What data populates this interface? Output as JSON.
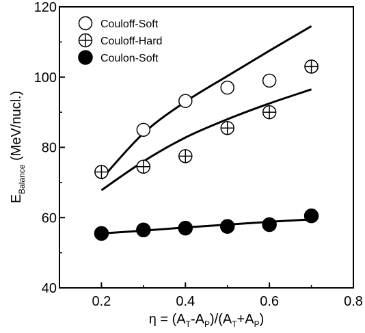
{
  "chart_data": {
    "type": "scatter",
    "xlim": [
      0.1,
      0.8
    ],
    "ylim": [
      40,
      120
    ],
    "xticks": [
      0.2,
      0.4,
      0.6,
      0.8
    ],
    "xtick_labels": [
      "0.2",
      "0.4",
      "0.6",
      "0.8"
    ],
    "yticks": [
      40,
      60,
      80,
      100,
      120
    ],
    "ytick_labels": [
      "40",
      "60",
      "80",
      "100",
      "120"
    ],
    "xlabel": {
      "main": "η = (A",
      "s1": "T",
      "m2": "-A",
      "s2": "P",
      "m3": ")/(A",
      "s3": "T",
      "m4": "+A",
      "s4": "P",
      "m5": ")"
    },
    "ylabel": {
      "main": "E",
      "sub": "Balance",
      "rest": " (MeV/nucl.)"
    },
    "grid": false,
    "legend_position": "top-left",
    "series": [
      {
        "name": "Couloff-Soft",
        "marker": "open-circle",
        "x": [
          0.2,
          0.3,
          0.4,
          0.5,
          0.6,
          0.7
        ],
        "y": [
          73.0,
          85.0,
          93.2,
          97.0,
          99.0,
          103.0
        ]
      },
      {
        "name": "Couloff-Hard",
        "marker": "circle-plus",
        "x": [
          0.2,
          0.3,
          0.4,
          0.5,
          0.6,
          0.7
        ],
        "y": [
          73.0,
          74.5,
          77.5,
          85.5,
          90.0,
          103.0
        ]
      },
      {
        "name": "Coulon-Soft",
        "marker": "filled-circle",
        "x": [
          0.2,
          0.3,
          0.4,
          0.5,
          0.6,
          0.7
        ],
        "y": [
          55.5,
          56.5,
          57.0,
          57.5,
          58.0,
          60.5
        ]
      }
    ],
    "fit_curves": [
      {
        "x": [
          0.2,
          0.3,
          0.4,
          0.5,
          0.6,
          0.7
        ],
        "y": [
          71.0,
          84.0,
          93.0,
          100.3,
          107.5,
          114.5
        ]
      },
      {
        "x": [
          0.2,
          0.3,
          0.4,
          0.5,
          0.6,
          0.7
        ],
        "y": [
          67.8,
          76.0,
          82.8,
          88.0,
          92.5,
          96.5
        ]
      },
      {
        "x": [
          0.2,
          0.3,
          0.4,
          0.5,
          0.6,
          0.7
        ],
        "y": [
          55.5,
          56.3,
          57.2,
          58.0,
          58.8,
          59.5
        ]
      }
    ]
  }
}
